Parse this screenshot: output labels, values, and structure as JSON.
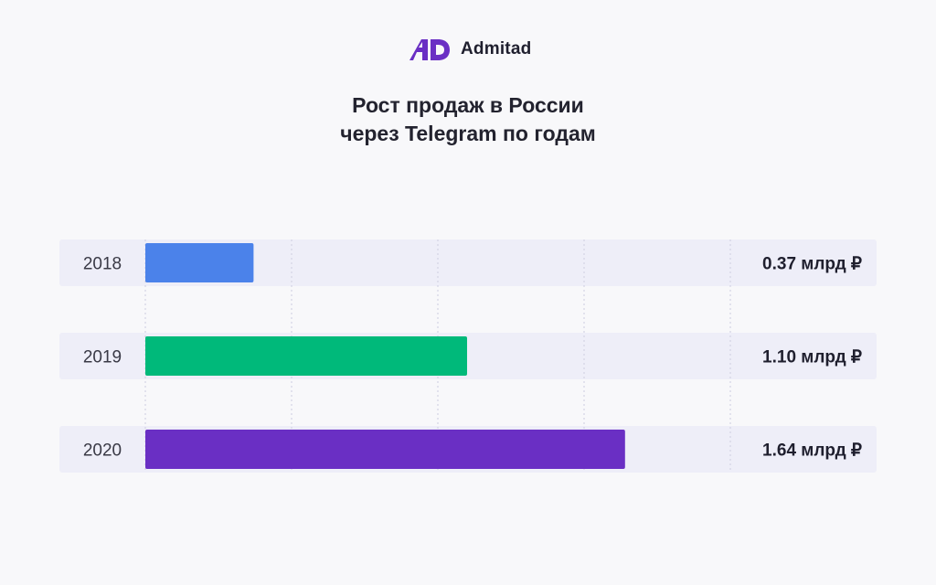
{
  "brand": {
    "name": "Admitad",
    "color": "#6a2fc4"
  },
  "title_line1": "Рост продаж в России",
  "title_line2": "через Telegram по годам",
  "chart_data": {
    "type": "bar",
    "orientation": "horizontal",
    "categories": [
      "2018",
      "2019",
      "2020"
    ],
    "values": [
      0.37,
      1.1,
      1.64
    ],
    "value_labels": [
      "0.37 млрд ₽",
      "1.10 млрд ₽",
      "1.64 млрд ₽"
    ],
    "colors": [
      "#4b82ea",
      "#00b97a",
      "#6a2fc4"
    ],
    "xlim": [
      0,
      2
    ],
    "grid": true,
    "legend": false
  }
}
